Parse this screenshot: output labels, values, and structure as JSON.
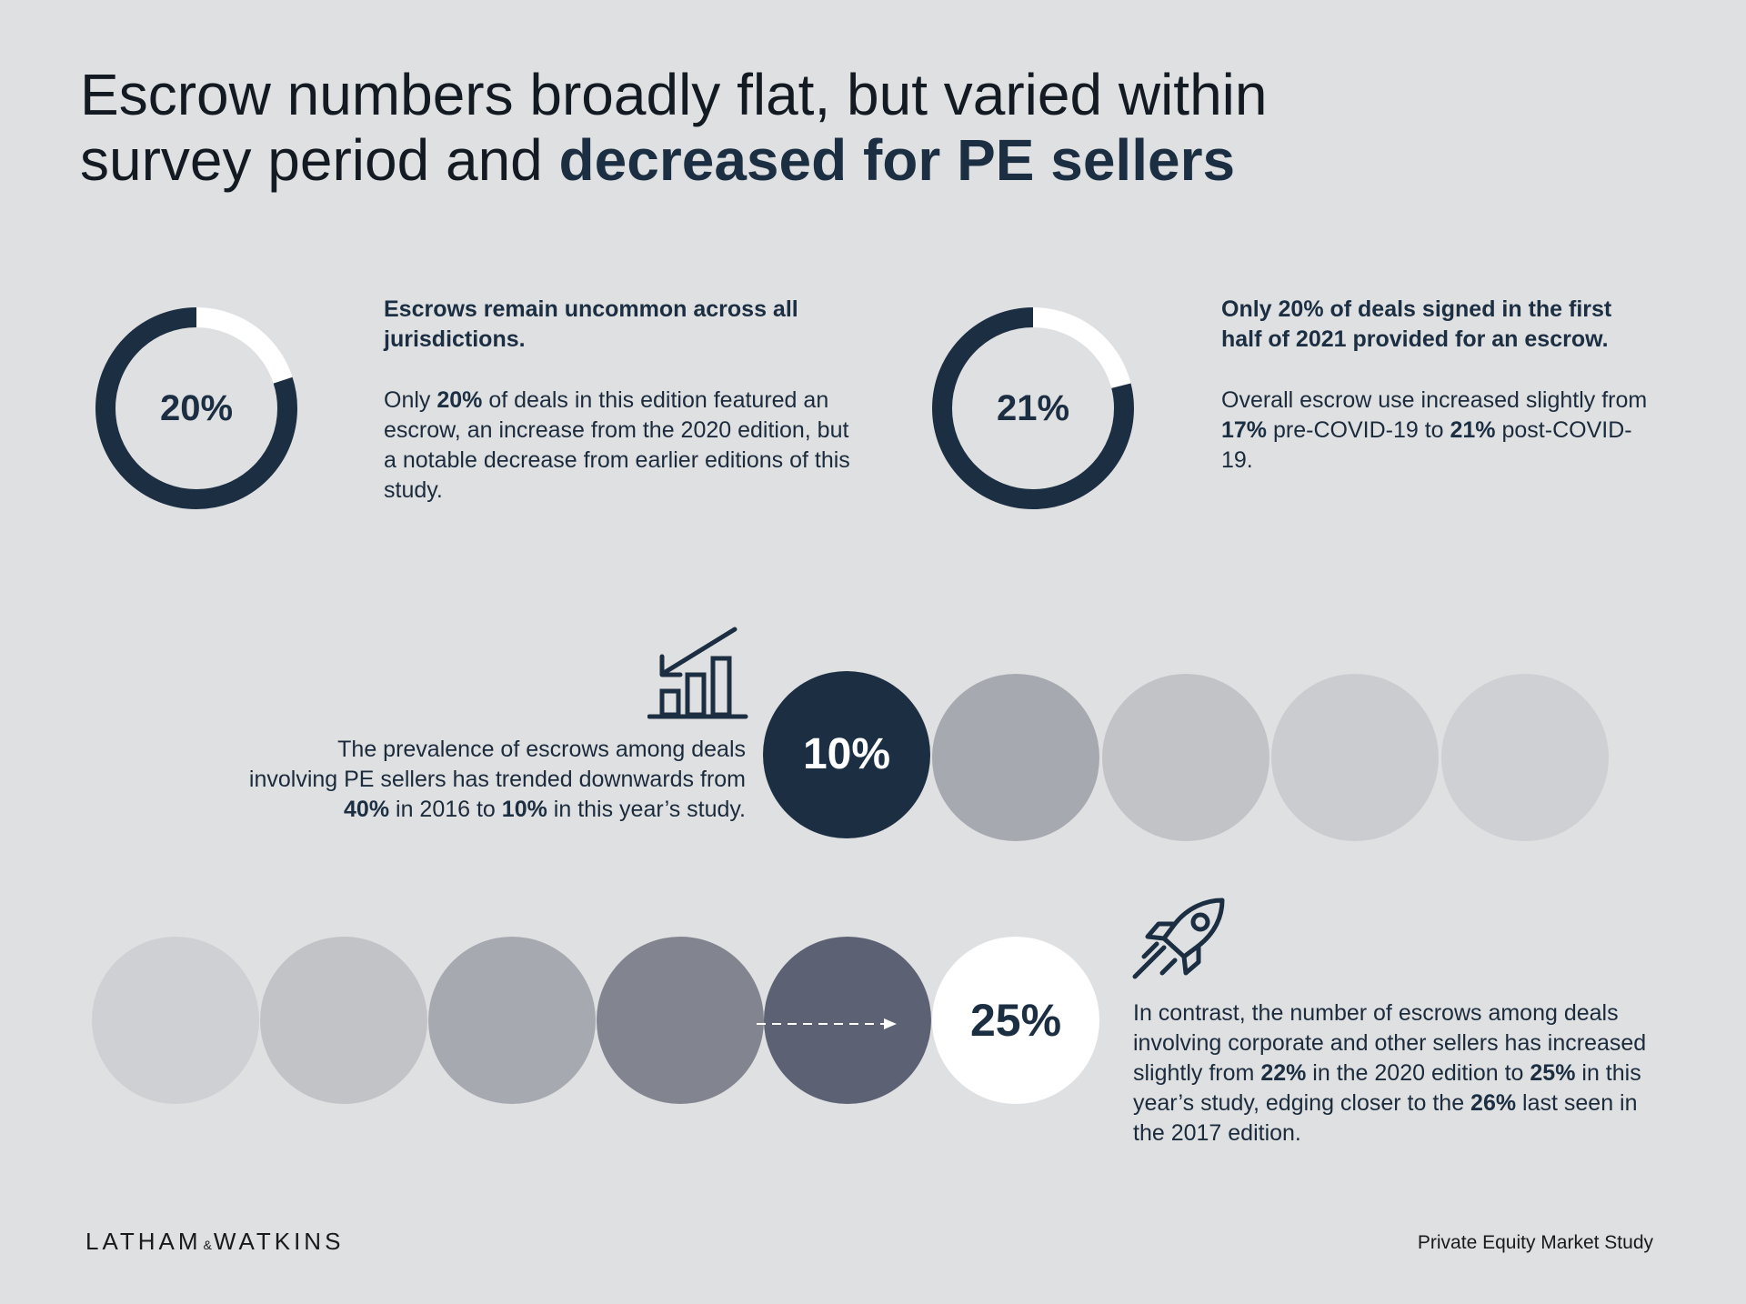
{
  "title": {
    "line1": "Escrow numbers broadly flat, but varied within",
    "line2_normal": "survey period and ",
    "line2_bold": "decreased for PE sellers"
  },
  "stat1": {
    "value": "20%",
    "fraction": 0.2,
    "heading": "Escrows remain uncommon across all jurisdictions.",
    "body_1": "Only ",
    "body_b1": "20%",
    "body_2": " of deals in this edition featured an escrow, an increase from the 2020 edition, but a notable decrease from earlier editions of this study."
  },
  "stat2": {
    "value": "21%",
    "fraction": 0.21,
    "heading": "Only 20% of deals signed in the first half of 2021 provided for an escrow.",
    "body_1": "Overall escrow use increased slightly from ",
    "body_b1": "17%",
    "body_2": " pre-COVID-19 to ",
    "body_b2": "21%",
    "body_3": " post-COVID-19."
  },
  "pe_sellers": {
    "value": "10%",
    "text_1": "The prevalence of escrows among deals involving PE sellers has trended downwards from ",
    "text_b1": "40%",
    "text_2": " in 2016 to ",
    "text_b2": "10%",
    "text_3": " in this year’s study."
  },
  "corporate_sellers": {
    "value": "25%",
    "text_1": "In contrast, the number of escrows among deals involving corporate and other sellers has increased slightly from ",
    "text_b1": "22%",
    "text_2": " in the 2020 edition to ",
    "text_b2": "25%",
    "text_3": " in this year’s study, edging closer to the ",
    "text_b3": "26%",
    "text_4": " last seen in the 2017 edition."
  },
  "footer": {
    "logo_left": "LATHAM",
    "logo_amp": "&",
    "logo_right": "WATKINS",
    "right": "Private Equity Market Study"
  },
  "colors": {
    "background": "#dfe0e2",
    "navy": "#1c2e42",
    "white": "#ffffff",
    "pe_circles": [
      "#1c2e42",
      "#a7a9b0",
      "#c2c3c7",
      "#cbccd0",
      "#cfd0d3"
    ],
    "corp_circles": [
      "#cfd0d3",
      "#c2c3c7",
      "#a7a9b0",
      "#82848f",
      "#5c6273",
      "#ffffff"
    ]
  },
  "icons": {
    "trend": "bar-chart-down-arrow-icon",
    "rocket": "rocket-icon",
    "arrow": "dashed-arrow-icon"
  }
}
